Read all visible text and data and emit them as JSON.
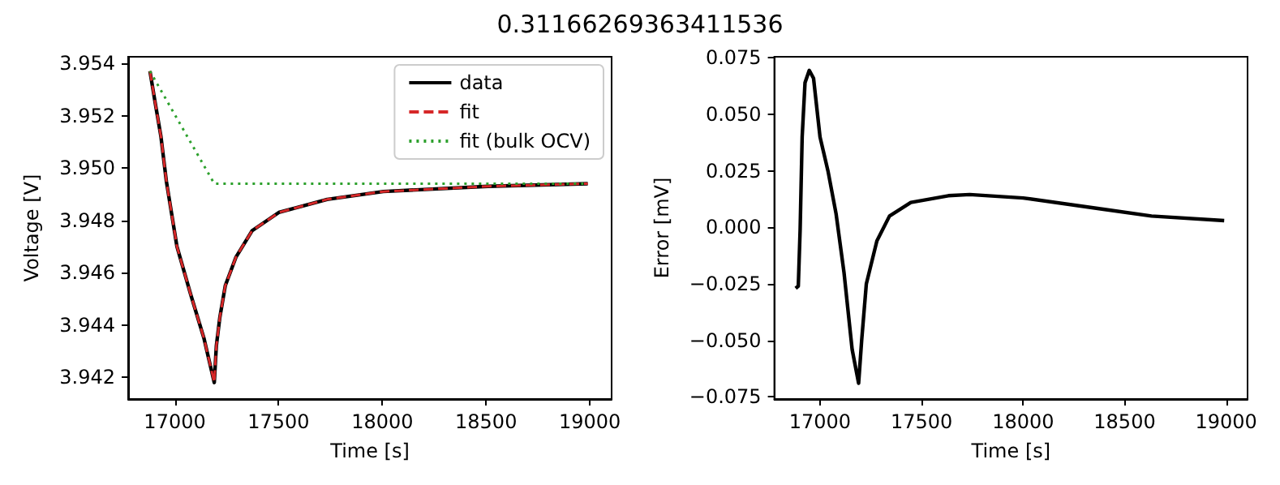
{
  "chart_data": [
    {
      "type": "line",
      "title": "0.31166269363411536",
      "xlabel": "Time [s]",
      "ylabel": "Voltage [V]",
      "xlim": [
        16775,
        19105
      ],
      "ylim": [
        3.94117,
        3.95425
      ],
      "xticks": [
        17000,
        17500,
        18000,
        18500,
        19000
      ],
      "yticks": [
        {
          "value": 3.942,
          "label": "3.942"
        },
        {
          "value": 3.944,
          "label": "3.944"
        },
        {
          "value": 3.946,
          "label": "3.946"
        },
        {
          "value": 3.948,
          "label": "3.948"
        },
        {
          "value": 3.95,
          "label": "3.950"
        },
        {
          "value": 3.952,
          "label": "3.952"
        },
        {
          "value": 3.954,
          "label": "3.954"
        }
      ],
      "x": [
        16880,
        16905,
        16933,
        16959,
        17010,
        17075,
        17140,
        17190,
        17200,
        17217,
        17243,
        17295,
        17372,
        17501,
        17734,
        18005,
        18509,
        18990
      ],
      "series": [
        {
          "name": "data",
          "color": "#000000",
          "line_style": "solid",
          "values": [
            3.9537,
            3.9525,
            3.9512,
            3.9495,
            3.947,
            3.9452,
            3.9435,
            3.9418,
            3.9432,
            3.9443,
            3.9455,
            3.9466,
            3.9476,
            3.9483,
            3.9488,
            3.9491,
            3.9493,
            3.9494
          ]
        },
        {
          "name": "fit",
          "color": "#d62728",
          "line_style": "dashed",
          "values": [
            3.9537,
            3.9525,
            3.9512,
            3.9495,
            3.947,
            3.9452,
            3.9435,
            3.9418,
            3.9432,
            3.9443,
            3.9455,
            3.9466,
            3.9476,
            3.9483,
            3.9488,
            3.9491,
            3.9493,
            3.9494
          ]
        },
        {
          "name": "fit (bulk OCV)",
          "color": "#2ca02c",
          "line_style": "dotted",
          "x": [
            16880,
            17190,
            18990
          ],
          "values": [
            3.9537,
            3.9494,
            3.9494
          ]
        }
      ],
      "legend": "top right",
      "grid": false,
      "marker": "none"
    },
    {
      "type": "line",
      "xlabel": "Time [s]",
      "ylabel": "Error [mV]",
      "xlim": [
        16775,
        19105
      ],
      "ylim": [
        -0.076,
        0.0755
      ],
      "xticks": [
        17000,
        17500,
        18000,
        18500,
        19000
      ],
      "yticks": [
        {
          "value": -0.075,
          "label": "−0.075"
        },
        {
          "value": -0.05,
          "label": "−0.050"
        },
        {
          "value": -0.025,
          "label": "−0.025"
        },
        {
          "value": 0,
          "label": "0.000"
        },
        {
          "value": 0.025,
          "label": "0.025"
        },
        {
          "value": 0.05,
          "label": "0.050"
        },
        {
          "value": 0.075,
          "label": "0.075"
        }
      ],
      "x": [
        16880,
        16893,
        16902,
        16912,
        16926,
        16947,
        16968,
        17000,
        17039,
        17079,
        17118,
        17158,
        17190,
        17205,
        17228,
        17280,
        17342,
        17447,
        17632,
        17737,
        18000,
        18395,
        18632,
        18990
      ],
      "series": [
        {
          "color": "#000000",
          "line_style": "solid",
          "values": [
            -0.027,
            -0.026,
            -0.001,
            0.04,
            0.064,
            0.0695,
            0.066,
            0.04,
            0.025,
            0.006,
            -0.02,
            -0.054,
            -0.069,
            -0.05,
            -0.025,
            -0.006,
            0.005,
            0.011,
            0.014,
            0.0145,
            0.013,
            0.008,
            0.005,
            0.003
          ]
        }
      ],
      "legend": false,
      "grid": false,
      "marker": "none"
    }
  ]
}
